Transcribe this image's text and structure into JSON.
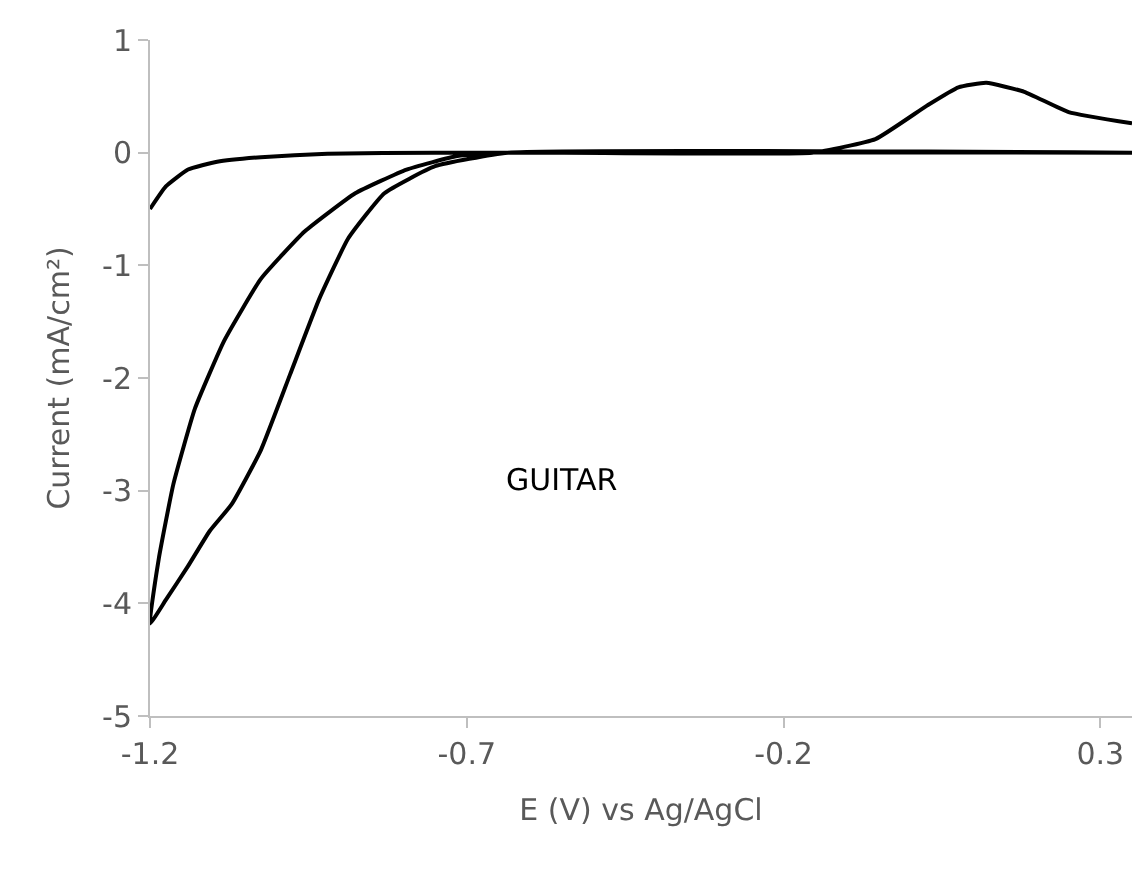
{
  "chart_data": {
    "type": "line",
    "xlabel": "E (V) vs Ag/AgCl",
    "ylabel": "Current (mA/cm²)",
    "annotations": [
      "GUITAR"
    ],
    "xlim": [
      -1.2,
      0.35
    ],
    "xticks": [
      -1.2,
      -0.7,
      -0.2,
      0.3
    ],
    "ylim": [
      -5,
      1
    ],
    "yticks": [
      -5,
      -4,
      -3,
      -2,
      -1,
      0,
      1
    ],
    "grid": false,
    "marker": "none",
    "line_style": "solid",
    "series": [
      {
        "color": "#000000",
        "x": [
          -1.2,
          -1.175,
          -1.14,
          -1.094,
          -1.025,
          -0.92,
          -0.75,
          0.35,
          -0.635,
          -0.75,
          -0.83,
          -0.887,
          -0.933,
          -0.979,
          -1.025,
          -1.071,
          -1.106,
          -1.14,
          -1.175,
          -1.2,
          -1.186,
          -1.163,
          -1.129,
          -1.083,
          -1.025,
          -0.956,
          -0.876,
          -0.795,
          -0.715,
          -0.635,
          -0.155,
          -0.055,
          0.027,
          0.076,
          0.12,
          0.18,
          0.25,
          0.35
        ],
        "values": [
          -0.5,
          -0.3,
          -0.15,
          -0.08,
          -0.04,
          -0.01,
          0,
          0,
          0,
          -0.12,
          -0.36,
          -0.76,
          -1.3,
          -1.97,
          -2.64,
          -3.12,
          -3.36,
          -3.67,
          -3.97,
          -4.18,
          -3.6,
          -2.94,
          -2.27,
          -1.67,
          -1.12,
          -0.7,
          -0.36,
          -0.15,
          -0.03,
          0,
          0,
          0.12,
          0.42,
          0.58,
          0.62,
          0.54,
          0.36,
          0.26
        ]
      }
    ]
  }
}
